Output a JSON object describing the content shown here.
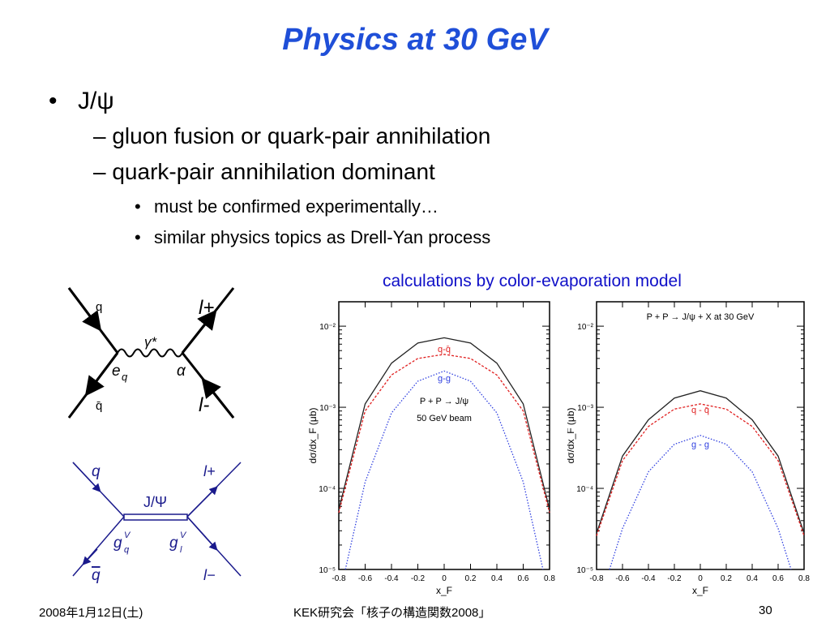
{
  "title": "Physics at 30 GeV",
  "bullets": {
    "main": "J/ψ",
    "sub1": "– gluon fusion or quark-pair annihilation",
    "sub2": "– quark-pair annihilation dominant",
    "subsub1": "must be confirmed experimentally…",
    "subsub2": "similar physics topics as Drell-Yan process"
  },
  "calc_caption": "calculations by color-evaporation model",
  "feynman1": {
    "q_in": "q",
    "q_bar": "q̄",
    "photon": "γ*",
    "lepton_plus": "l+",
    "lepton_minus": "l-",
    "coupling_e": "e",
    "coupling_e_sub": "q",
    "alpha": "α"
  },
  "feynman2": {
    "q": "q",
    "q_bar": "q",
    "meson": "J/Ψ",
    "l_plus": "l+",
    "l_minus": "l−",
    "g": "g",
    "gq_sup": "V",
    "gq_sub": "q",
    "gl_sup": "V",
    "gl_sub": "l"
  },
  "colors": {
    "title": "#1f4fd8",
    "caption": "#1010c8",
    "total_curve": "#222222",
    "qqbar_curve": "#e02020",
    "gg_curve": "#3040e0",
    "feynman2_lines": "#1a1a8c"
  },
  "chart_data": [
    {
      "type": "line",
      "title": "",
      "annotation_lines": [
        "P + P → J/ψ",
        "50 GeV beam"
      ],
      "xlabel": "x_F",
      "ylabel": "dσ/dx_F (μb)",
      "log_y": true,
      "xlim": [
        -0.8,
        0.8
      ],
      "ylim": [
        1e-05,
        0.02
      ],
      "x_ticks": [
        "-0.8",
        "-0.6",
        "-0.4",
        "-0.2",
        "0",
        "0.2",
        "0.4",
        "0.6",
        "0.8"
      ],
      "y_ticks": [
        "10⁻⁵",
        "10⁻⁴",
        "10⁻³",
        "10⁻²"
      ],
      "series": [
        {
          "values": [
            [
              -0.8,
              5.5e-05
            ],
            [
              -0.6,
              0.0011
            ],
            [
              -0.4,
              0.0035
            ],
            [
              -0.2,
              0.0062
            ],
            [
              0,
              0.0072
            ],
            [
              0.2,
              0.0062
            ],
            [
              0.4,
              0.0035
            ],
            [
              0.6,
              0.0011
            ],
            [
              0.8,
              5.5e-05
            ]
          ]
        },
        {
          "name": "q-q̄",
          "values": [
            [
              -0.8,
              5e-05
            ],
            [
              -0.6,
              0.0009
            ],
            [
              -0.4,
              0.0025
            ],
            [
              -0.2,
              0.004
            ],
            [
              0,
              0.0045
            ],
            [
              0.2,
              0.004
            ],
            [
              0.4,
              0.0025
            ],
            [
              0.6,
              0.0009
            ],
            [
              0.8,
              5e-05
            ]
          ]
        },
        {
          "name": "g-g",
          "values": [
            [
              -0.75,
              1e-05
            ],
            [
              -0.6,
              0.00012
            ],
            [
              -0.4,
              0.00085
            ],
            [
              -0.2,
              0.0021
            ],
            [
              0,
              0.0028
            ],
            [
              0.2,
              0.0021
            ],
            [
              0.4,
              0.00085
            ],
            [
              0.6,
              0.00012
            ],
            [
              0.75,
              1e-05
            ]
          ]
        }
      ]
    },
    {
      "type": "line",
      "title": "P + P → J/ψ + X  at  30 GeV",
      "xlabel": "x_F",
      "ylabel": "dσ/dx_F (μb)",
      "log_y": true,
      "xlim": [
        -0.8,
        0.8
      ],
      "ylim": [
        1e-05,
        0.02
      ],
      "x_ticks": [
        "-0.8",
        "-0.6",
        "-0.4",
        "-0.2",
        "0",
        "0.2",
        "0.4",
        "0.6",
        "0.8"
      ],
      "y_ticks": [
        "10⁻⁵",
        "10⁻⁴",
        "10⁻³",
        "10⁻²"
      ],
      "series": [
        {
          "values": [
            [
              -0.8,
              2.8e-05
            ],
            [
              -0.6,
              0.00025
            ],
            [
              -0.4,
              0.0007
            ],
            [
              -0.2,
              0.0013
            ],
            [
              0,
              0.0016
            ],
            [
              0.2,
              0.0013
            ],
            [
              0.4,
              0.0007
            ],
            [
              0.6,
              0.00025
            ],
            [
              0.8,
              2.8e-05
            ]
          ]
        },
        {
          "name": "q - q̄",
          "values": [
            [
              -0.8,
              2.6e-05
            ],
            [
              -0.6,
              0.00022
            ],
            [
              -0.4,
              0.00058
            ],
            [
              -0.2,
              0.00095
            ],
            [
              0,
              0.0011
            ],
            [
              0.2,
              0.00095
            ],
            [
              0.4,
              0.00058
            ],
            [
              0.6,
              0.00022
            ],
            [
              0.8,
              2.6e-05
            ]
          ]
        },
        {
          "name": "g - g",
          "values": [
            [
              -0.7,
              1e-05
            ],
            [
              -0.6,
              3.2e-05
            ],
            [
              -0.4,
              0.00016
            ],
            [
              -0.2,
              0.00035
            ],
            [
              0,
              0.00045
            ],
            [
              0.2,
              0.00035
            ],
            [
              0.4,
              0.00016
            ],
            [
              0.6,
              3.2e-05
            ],
            [
              0.7,
              1e-05
            ]
          ]
        }
      ]
    }
  ],
  "footer": {
    "date": "2008年1月12日(土)",
    "center": "KEK研究会「核子の構造関数2008」",
    "page": "30"
  }
}
